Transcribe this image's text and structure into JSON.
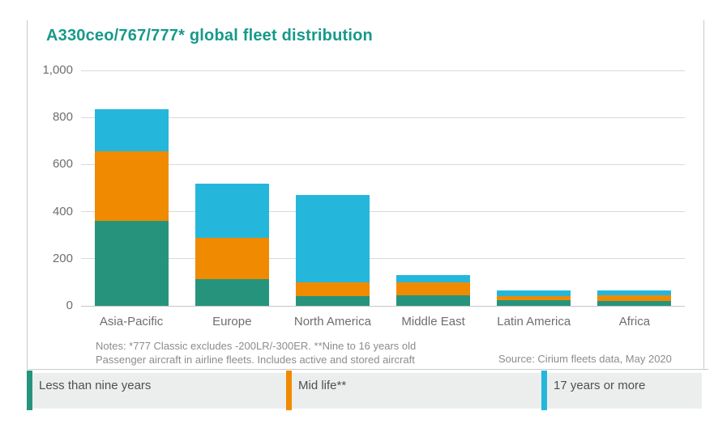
{
  "title": "A330ceo/767/777* global fleet distribution",
  "notes": {
    "line1": "Notes: *777 Classic excludes -200LR/-300ER. **Nine to 16 years old",
    "line2": "Passenger aircraft in airline fleets. Includes active and stored aircraft"
  },
  "source": "Source: Cirium fleets data, May 2020",
  "colors": {
    "teal": "#26947D",
    "orange": "#F08A00",
    "cyan": "#25B7DB",
    "title_text": "#17998A",
    "grid": "#D9D9D9",
    "grid_zero": "#C6C6C6",
    "axis_text": "#6E6E6E",
    "notes_text": "#8C8C8C",
    "legend_bg": "#ECEEEE",
    "legend_text": "#4F4F4F",
    "frame": "#C9C9C9"
  },
  "legend": {
    "items": [
      {
        "label": "Less than nine years",
        "color_key": "teal"
      },
      {
        "label": "Mid life**",
        "color_key": "orange"
      },
      {
        "label": "17 years or more",
        "color_key": "cyan"
      }
    ]
  },
  "chart_data": {
    "type": "bar",
    "stacked": true,
    "title": "A330ceo/767/777* global fleet distribution",
    "categories": [
      "Asia-Pacific",
      "Europe",
      "North America",
      "Middle East",
      "Latin America",
      "Africa"
    ],
    "series": [
      {
        "name": "Less than nine years",
        "color_key": "teal",
        "values": [
          360,
          115,
          40,
          45,
          25,
          20
        ]
      },
      {
        "name": "Mid life**",
        "color_key": "orange",
        "values": [
          295,
          175,
          60,
          55,
          15,
          25
        ]
      },
      {
        "name": "17 years or more",
        "color_key": "cyan",
        "values": [
          180,
          230,
          370,
          30,
          25,
          20
        ]
      }
    ],
    "totals": [
      835,
      520,
      470,
      130,
      65,
      65
    ],
    "xlabel": "",
    "ylabel": "",
    "ylim": [
      0,
      1000
    ],
    "yticks": [
      0,
      200,
      400,
      600,
      800,
      1000
    ],
    "ytick_labels": [
      "0",
      "200",
      "400",
      "600",
      "800",
      "1,000"
    ],
    "grid": true,
    "legend_position": "bottom"
  }
}
